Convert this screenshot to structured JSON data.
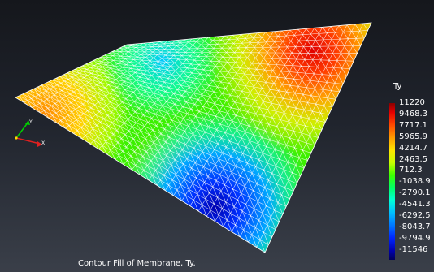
{
  "caption": "Contour Fill of Membrane, Ty.",
  "legend": {
    "title": "Ty",
    "values": [
      "11220",
      "9468.3",
      "7717.1",
      "5965.9",
      "4214.7",
      "2463.5",
      "712.3",
      "-1038.9",
      "-2790.1",
      "-4541.3",
      "-6292.5",
      "-8043.7",
      "-9794.9",
      "-11546"
    ]
  },
  "axes_triad": {
    "labels": [
      "Y",
      "X"
    ],
    "colors": {
      "y": "#00d000",
      "x": "#e02020"
    }
  }
}
